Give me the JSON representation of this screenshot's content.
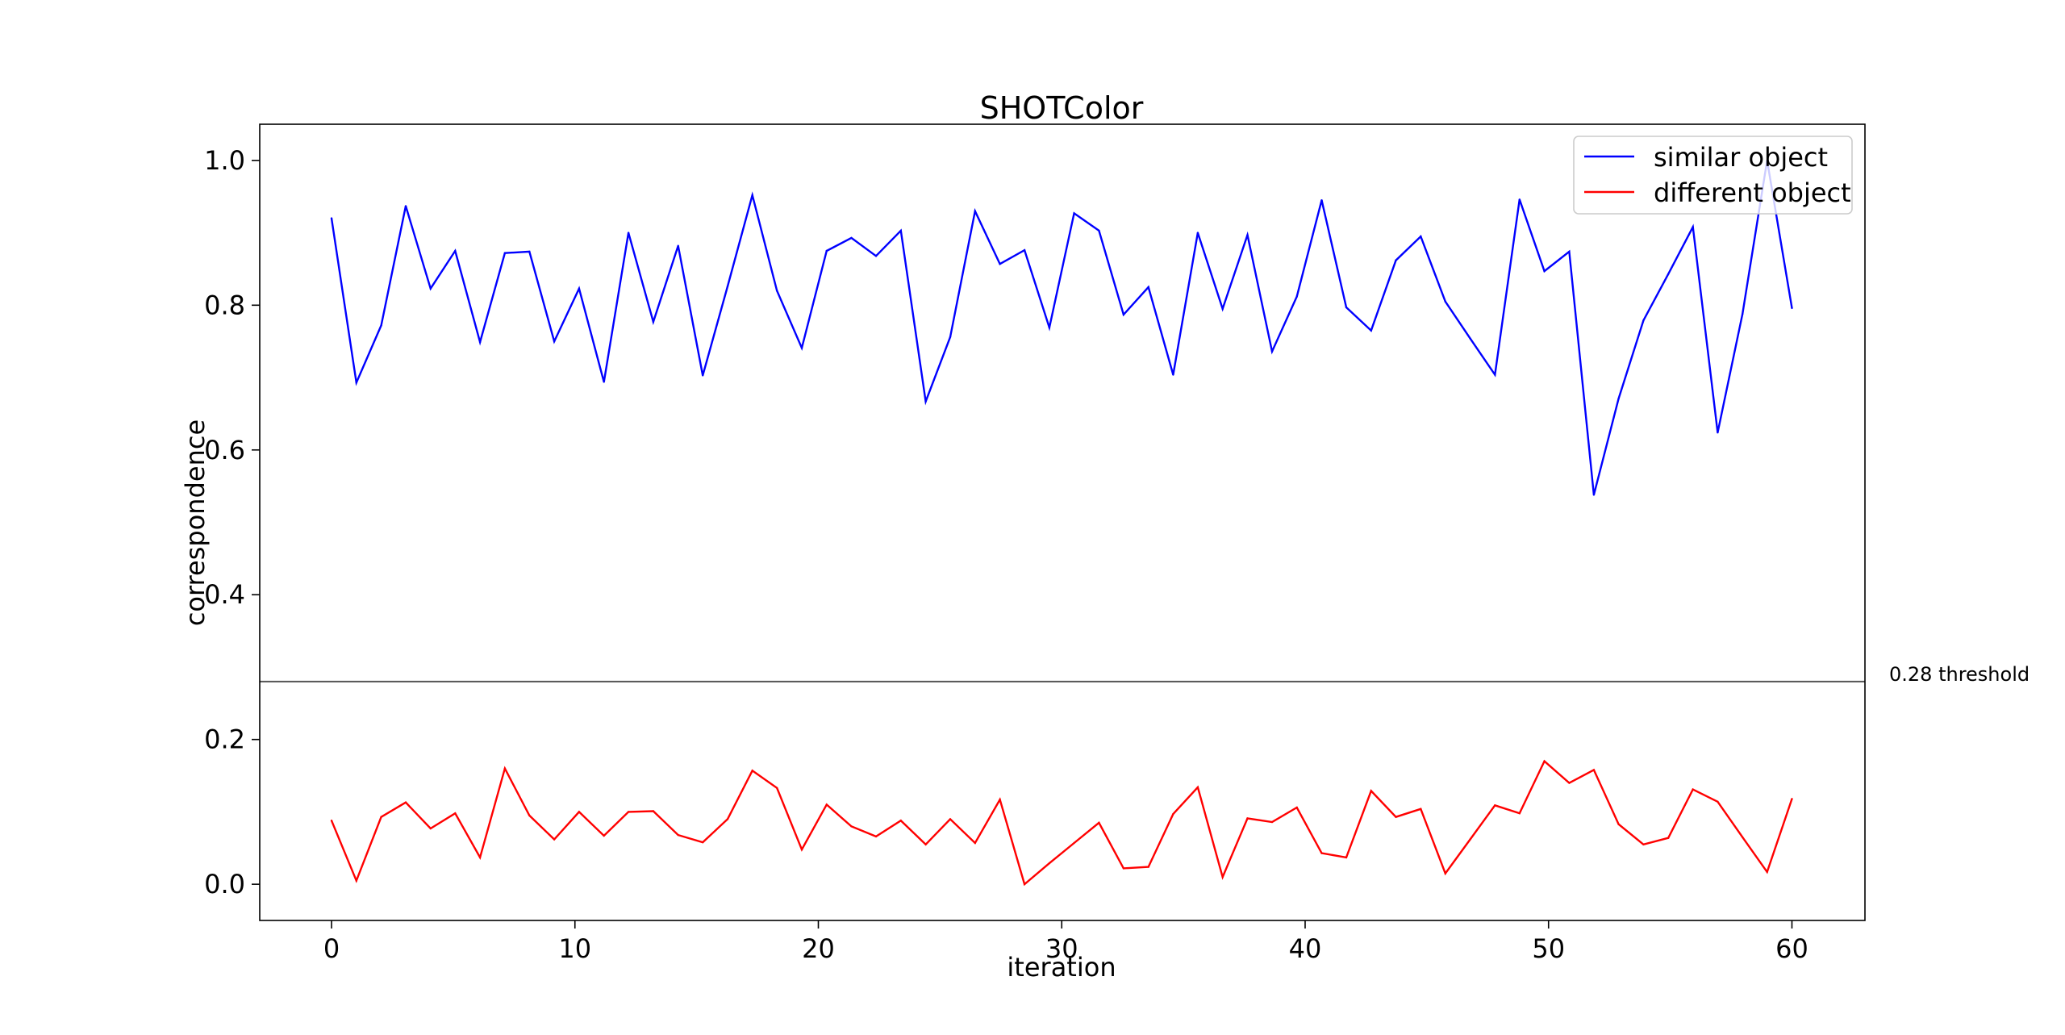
{
  "chart_data": {
    "type": "line",
    "title": "SHOTColor",
    "xlabel": "iteration",
    "ylabel": "correspondence",
    "xlim": [
      -2.95,
      63
    ],
    "ylim": [
      -0.05,
      1.05
    ],
    "xticks": [
      0,
      10,
      20,
      30,
      40,
      50,
      60
    ],
    "xtick_labels": [
      "0",
      "10",
      "20",
      "30",
      "40",
      "50",
      "60"
    ],
    "yticks": [
      0.0,
      0.2,
      0.4,
      0.6,
      0.8,
      1.0
    ],
    "ytick_labels": [
      "0.0",
      "0.2",
      "0.4",
      "0.6",
      "0.8",
      "1.0"
    ],
    "grid": false,
    "legend_position": "top-right",
    "threshold": {
      "value": 0.28,
      "label": "0.28 threshold",
      "color": "#555555"
    },
    "series": [
      {
        "name": "similar object",
        "color": "#0000ff",
        "x": [
          0,
          1.02,
          2.04,
          3.05,
          4.07,
          5.08,
          6.1,
          7.12,
          8.13,
          9.15,
          10.17,
          11.19,
          12.2,
          13.22,
          14.24,
          15.25,
          16.27,
          17.29,
          18.3,
          19.32,
          20.34,
          21.36,
          22.37,
          23.39,
          24.41,
          25.42,
          26.44,
          27.46,
          28.47,
          29.49,
          30.51,
          31.53,
          32.54,
          33.56,
          34.58,
          35.59,
          36.61,
          37.63,
          38.64,
          39.66,
          40.68,
          41.69,
          42.71,
          43.73,
          44.75,
          45.76,
          46.78,
          47.8,
          48.81,
          49.83,
          50.85,
          51.86,
          52.88,
          53.9,
          54.92,
          55.93,
          56.95,
          57.97,
          58.98,
          60
        ],
        "y": [
          0.92,
          0.693,
          0.772,
          0.937,
          0.823,
          0.875,
          0.749,
          0.872,
          0.874,
          0.75,
          0.823,
          0.694,
          0.9,
          0.777,
          0.882,
          0.703,
          0.826,
          0.952,
          0.82,
          0.741,
          0.875,
          0.893,
          0.868,
          0.903,
          0.667,
          0.756,
          0.93,
          0.857,
          0.876,
          0.769,
          0.927,
          0.903,
          0.787,
          0.825,
          0.704,
          0.9,
          0.795,
          0.897,
          0.736,
          0.812,
          0.945,
          0.797,
          0.765,
          0.862,
          0.895,
          0.805,
          0.754,
          0.704,
          0.946,
          0.847,
          0.874,
          0.538,
          0.671,
          0.779,
          0.843,
          0.908,
          0.624,
          0.788,
          1.0,
          0.796
        ]
      },
      {
        "name": "different object",
        "color": "#ff0000",
        "x": [
          0,
          1.02,
          2.04,
          3.05,
          4.07,
          5.08,
          6.1,
          7.12,
          8.13,
          9.15,
          10.17,
          11.19,
          12.2,
          13.22,
          14.24,
          15.25,
          16.27,
          17.29,
          18.3,
          19.32,
          20.34,
          21.36,
          22.37,
          23.39,
          24.41,
          25.42,
          26.44,
          27.46,
          28.47,
          29.49,
          30.51,
          31.53,
          32.54,
          33.56,
          34.58,
          35.59,
          36.61,
          37.63,
          38.64,
          39.66,
          40.68,
          41.69,
          42.71,
          43.73,
          44.75,
          45.76,
          46.78,
          47.8,
          48.81,
          49.83,
          50.85,
          51.86,
          52.88,
          53.9,
          54.92,
          55.93,
          56.95,
          57.97,
          58.98,
          60
        ],
        "y": [
          0.088,
          0.005,
          0.093,
          0.113,
          0.077,
          0.098,
          0.037,
          0.16,
          0.095,
          0.062,
          0.1,
          0.067,
          0.1,
          0.101,
          0.068,
          0.058,
          0.09,
          0.157,
          0.133,
          0.048,
          0.11,
          0.08,
          0.066,
          0.088,
          0.055,
          0.09,
          0.057,
          0.117,
          0.0,
          0.029,
          0.057,
          0.085,
          0.022,
          0.024,
          0.097,
          0.134,
          0.01,
          0.091,
          0.086,
          0.106,
          0.043,
          0.037,
          0.129,
          0.093,
          0.104,
          0.015,
          0.062,
          0.109,
          0.098,
          0.17,
          0.14,
          0.158,
          0.083,
          0.055,
          0.064,
          0.131,
          0.114,
          0.065,
          0.017,
          0.118
        ]
      }
    ]
  }
}
